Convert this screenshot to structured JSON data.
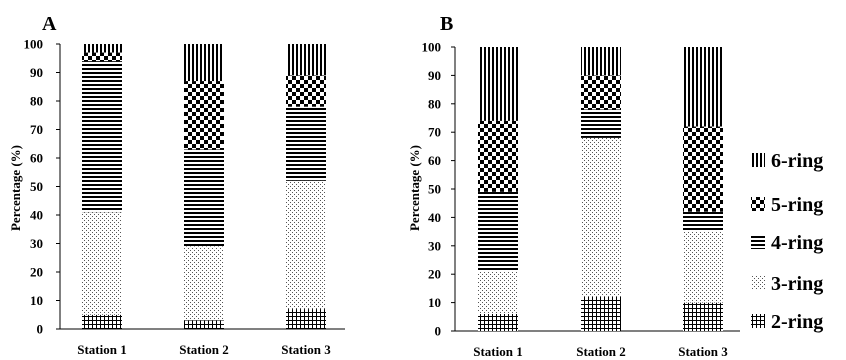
{
  "chart_data": [
    {
      "type": "bar",
      "stacked": true,
      "title": "A",
      "ylabel": "Percentage (%)",
      "ylim": [
        0,
        100
      ],
      "yticks": [
        0,
        10,
        20,
        30,
        40,
        50,
        60,
        70,
        80,
        90,
        100
      ],
      "categories": [
        "Station 1",
        "Station 2",
        "Station 3"
      ],
      "series": [
        {
          "name": "2-ring",
          "pattern": "grid",
          "values": [
            5,
            3,
            7
          ]
        },
        {
          "name": "3-ring",
          "pattern": "dots",
          "values": [
            36,
            26,
            45
          ]
        },
        {
          "name": "4-ring",
          "pattern": "hlines",
          "values": [
            53,
            34,
            26
          ]
        },
        {
          "name": "5-ring",
          "pattern": "checker",
          "values": [
            3,
            24,
            11
          ]
        },
        {
          "name": "6-ring",
          "pattern": "vlines",
          "values": [
            3,
            13,
            11
          ]
        }
      ]
    },
    {
      "type": "bar",
      "stacked": true,
      "title": "B",
      "ylabel": "Percentage (%)",
      "ylim": [
        0,
        100
      ],
      "yticks": [
        0,
        10,
        20,
        30,
        40,
        50,
        60,
        70,
        80,
        90,
        100
      ],
      "categories": [
        "Station 1",
        "Station 2",
        "Station 3"
      ],
      "series": [
        {
          "name": "2-ring",
          "pattern": "grid",
          "values": [
            6,
            12,
            10
          ]
        },
        {
          "name": "3-ring",
          "pattern": "dots",
          "values": [
            15,
            56,
            25
          ]
        },
        {
          "name": "4-ring",
          "pattern": "hlines",
          "values": [
            28,
            10,
            7
          ]
        },
        {
          "name": "5-ring",
          "pattern": "checker",
          "values": [
            25,
            12,
            30
          ]
        },
        {
          "name": "6-ring",
          "pattern": "vlines",
          "values": [
            26,
            10,
            28
          ]
        }
      ]
    }
  ],
  "legend": {
    "placement": "right",
    "items": [
      {
        "label": "6-ring",
        "pattern": "vlines"
      },
      {
        "label": "5-ring",
        "pattern": "checker"
      },
      {
        "label": "4-ring",
        "pattern": "hlines"
      },
      {
        "label": "3-ring",
        "pattern": "dots"
      },
      {
        "label": "2-ring",
        "pattern": "grid"
      }
    ]
  }
}
